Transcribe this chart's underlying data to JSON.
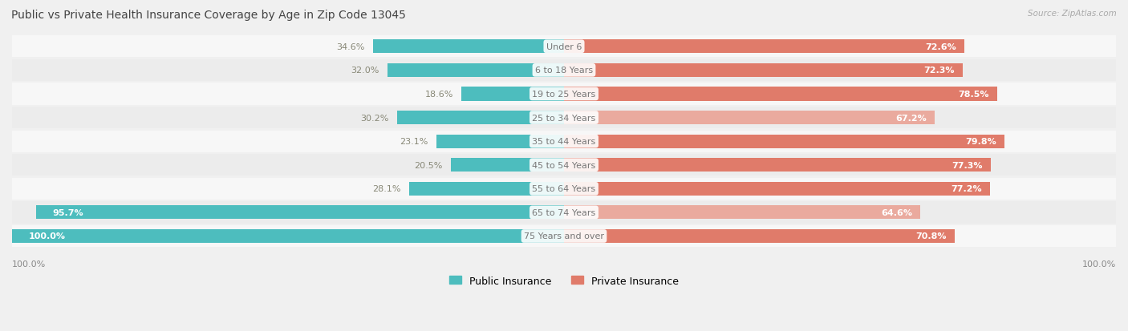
{
  "title": "Public vs Private Health Insurance Coverage by Age in Zip Code 13045",
  "source": "Source: ZipAtlas.com",
  "categories": [
    "Under 6",
    "6 to 18 Years",
    "19 to 25 Years",
    "25 to 34 Years",
    "35 to 44 Years",
    "45 to 54 Years",
    "55 to 64 Years",
    "65 to 74 Years",
    "75 Years and over"
  ],
  "public_values": [
    34.6,
    32.0,
    18.6,
    30.2,
    23.1,
    20.5,
    28.1,
    95.7,
    100.0
  ],
  "private_values": [
    72.6,
    72.3,
    78.5,
    67.2,
    79.8,
    77.3,
    77.2,
    64.6,
    70.8
  ],
  "public_color": "#4dbdbe",
  "private_colors": [
    "#e07b6a",
    "#e07b6a",
    "#e07b6a",
    "#eaaa9e",
    "#e07b6a",
    "#e07b6a",
    "#e07b6a",
    "#eaaa9e",
    "#e07b6a"
  ],
  "row_bg_odd": "#f7f7f7",
  "row_bg_even": "#ececec",
  "card_color": "#ffffff",
  "title_color": "#444444",
  "value_color_white": "#ffffff",
  "value_color_dark": "#888877",
  "center_label_color": "#777777",
  "axis_label_color": "#888888",
  "max_val": 100.0,
  "bar_height": 0.58,
  "legend_public": "Public Insurance",
  "legend_private": "Private Insurance"
}
